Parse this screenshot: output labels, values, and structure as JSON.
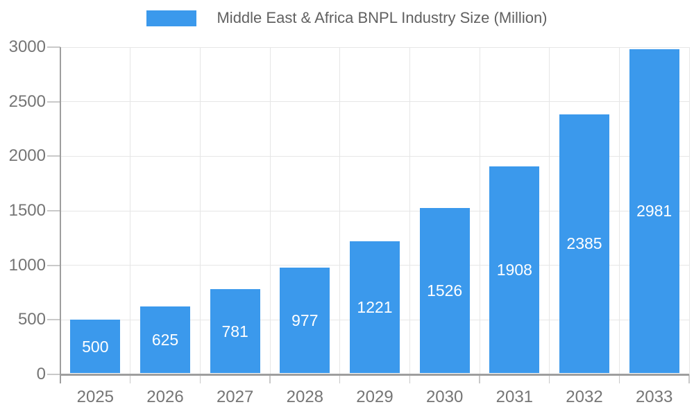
{
  "legend": {
    "label": "Middle East & Africa BNPL Industry Size (Million)"
  },
  "chart_data": {
    "type": "bar",
    "title": "Middle East & Africa BNPL Industry Size (Million)",
    "series": [
      {
        "name": "Middle East & Africa BNPL Industry Size (Million)",
        "values": [
          500,
          625,
          781,
          977,
          1221,
          1526,
          1908,
          2385,
          2981
        ]
      }
    ],
    "categories": [
      "2025",
      "2026",
      "2027",
      "2028",
      "2029",
      "2030",
      "2031",
      "2032",
      "2033"
    ],
    "values": [
      500,
      625,
      781,
      977,
      1221,
      1526,
      1908,
      2385,
      2981
    ],
    "bar_value_labels": [
      "500",
      "625",
      "781",
      "977",
      "1221",
      "1526",
      "1908",
      "2385",
      "2981"
    ],
    "xlabel": "",
    "ylabel": "",
    "ylim": [
      0,
      3000
    ],
    "yticks": [
      0,
      500,
      1000,
      1500,
      2000,
      2500,
      3000
    ],
    "ytick_labels": [
      "0",
      "500",
      "1000",
      "1500",
      "2000",
      "2500",
      "3000"
    ],
    "grid": true,
    "legend_position": "top",
    "value_labels_position": "inside-center",
    "colors": {
      "bar": "#3b99ec",
      "bar_value_text": "#ffffff",
      "axis_text": "#757575",
      "legend_text": "#616161",
      "gridline": "#e6e6e6",
      "tick": "#c9c9c9",
      "axis_line": "#9e9e9e",
      "background": "#ffffff"
    }
  }
}
